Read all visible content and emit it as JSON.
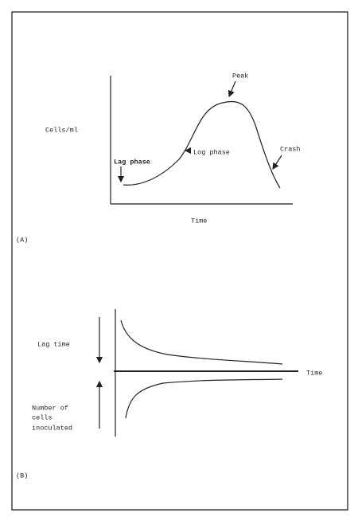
{
  "panel_a": {
    "y_axis_label": "Cells/ml",
    "x_axis_label": "Time",
    "labels": {
      "peak": "Peak",
      "log_phase": "Log phase",
      "lag_phase": "Lag phase",
      "crash": "Crash"
    },
    "caption": "(A)"
  },
  "panel_b": {
    "upper_label": "Lag time",
    "lower_label": [
      "Number of",
      "cells",
      "inoculated"
    ],
    "x_axis_label": "Time",
    "caption": "(B)"
  }
}
